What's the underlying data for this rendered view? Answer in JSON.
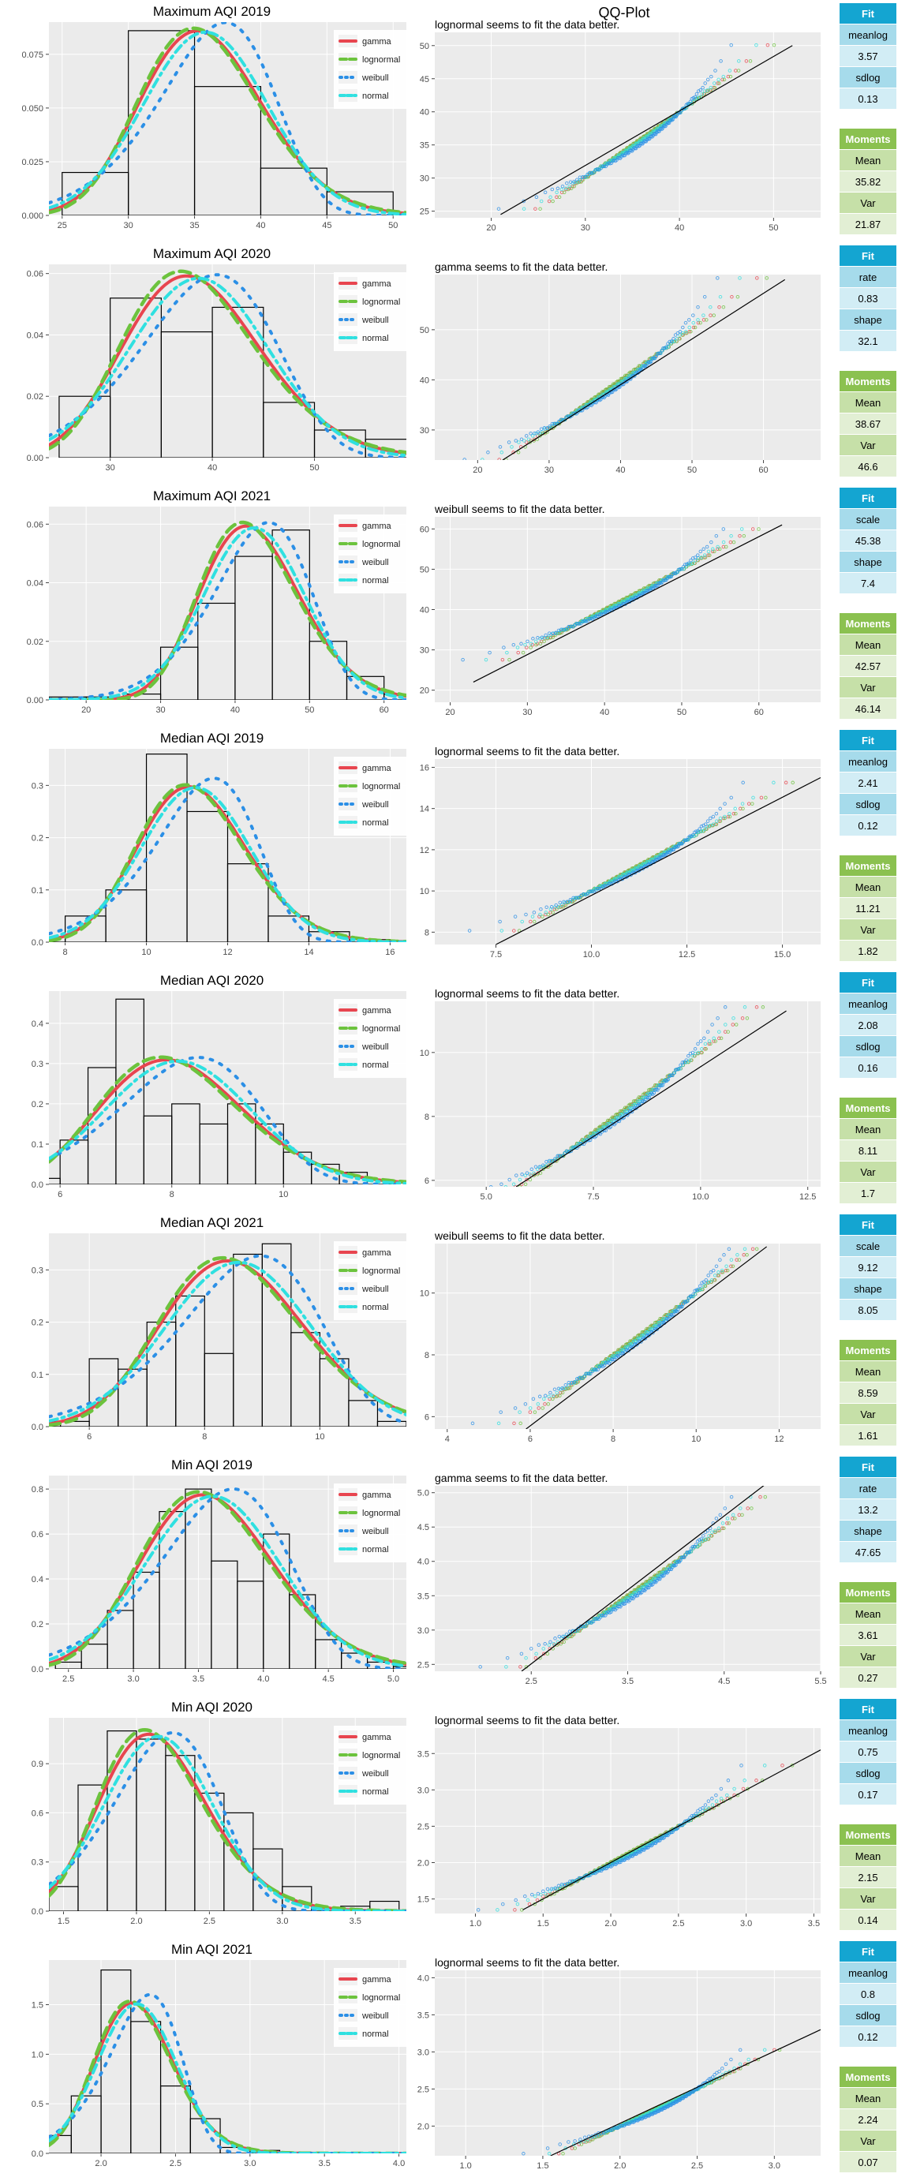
{
  "qq_title": "QQ-Plot",
  "legend_labels": [
    "gamma",
    "lognormal",
    "weibull",
    "normal"
  ],
  "colors": {
    "gamma": "#e8454f",
    "lognormal": "#6cc33d",
    "weibull": "#2b8fe6",
    "normal": "#2fe0e0",
    "panel_bg": "#ebebeb",
    "grid": "#ffffff",
    "fit_header": "#14a5d1",
    "fit_cell_dark": "#a6dbeb",
    "fit_cell_light": "#d2edf5",
    "mom_header": "#8bc150",
    "mom_cell_dark": "#c6e0a8",
    "mom_cell_light": "#e2efd4"
  },
  "chart_data": [
    {
      "type": "bar",
      "title": "Maximum AQI 2019",
      "hist_breaks": [
        25,
        30,
        35,
        40,
        45,
        50
      ],
      "hist_density": [
        0.02,
        0.086,
        0.06,
        0.022,
        0.011
      ],
      "xlim": [
        24,
        51
      ],
      "ylim": [
        0,
        0.09
      ],
      "xticks": [
        25,
        30,
        35,
        40,
        45,
        50
      ],
      "yticks": [
        0,
        0.025,
        0.05,
        0.075
      ],
      "ytick_labels": [
        "0.000",
        "0.025",
        "0.050",
        "0.075"
      ],
      "qq": {
        "subtitle": "lognormal seems to fit the data better.",
        "xlim": [
          14,
          55
        ],
        "ylim": [
          24,
          52
        ],
        "xticks": [
          20,
          30,
          40,
          50
        ],
        "yticks": [
          25,
          30,
          35,
          40,
          45,
          50
        ],
        "line": [
          [
            21,
            24.5
          ],
          [
            52,
            50
          ]
        ]
      },
      "fit": {
        "params": [
          {
            "name": "meanlog",
            "value": "3.57"
          },
          {
            "name": "sdlog",
            "value": "0.13"
          }
        ]
      },
      "moments": {
        "mean": "35.82",
        "var": "21.87"
      }
    },
    {
      "type": "bar",
      "title": "Maximum AQI 2020",
      "hist_breaks": [
        25,
        30,
        35,
        40,
        45,
        50,
        55,
        60
      ],
      "hist_density": [
        0.02,
        0.052,
        0.041,
        0.049,
        0.018,
        0.009,
        0.006
      ],
      "xlim": [
        24,
        59
      ],
      "ylim": [
        0,
        0.063
      ],
      "xticks": [
        30,
        40,
        50
      ],
      "yticks": [
        0,
        0.02,
        0.04,
        0.06
      ],
      "ytick_labels": [
        "0.00",
        "0.02",
        "0.04",
        "0.06"
      ],
      "qq": {
        "subtitle": "gamma seems to fit the data better.",
        "xlim": [
          14,
          68
        ],
        "ylim": [
          24,
          61
        ],
        "xticks": [
          20,
          30,
          40,
          50,
          60
        ],
        "yticks": [
          30,
          40,
          50
        ],
        "line": [
          [
            23.5,
            24
          ],
          [
            63,
            60
          ]
        ]
      },
      "fit": {
        "params": [
          {
            "name": "rate",
            "value": "0.83"
          },
          {
            "name": "shape",
            "value": "32.1"
          }
        ]
      },
      "moments": {
        "mean": "38.67",
        "var": "46.6"
      }
    },
    {
      "type": "bar",
      "title": "Maximum AQI 2021",
      "hist_breaks": [
        15,
        20,
        25,
        30,
        35,
        40,
        45,
        50,
        55,
        60,
        65
      ],
      "hist_density": [
        0.001,
        0.001,
        0.002,
        0.018,
        0.033,
        0.049,
        0.058,
        0.02,
        0.008,
        0.002
      ],
      "xlim": [
        15,
        63
      ],
      "ylim": [
        0,
        0.066
      ],
      "xticks": [
        20,
        30,
        40,
        50,
        60
      ],
      "yticks": [
        0,
        0.02,
        0.04,
        0.06
      ],
      "ytick_labels": [
        "0.00",
        "0.02",
        "0.04",
        "0.06"
      ],
      "qq": {
        "subtitle": "weibull seems to fit the data better.",
        "xlim": [
          18,
          68
        ],
        "ylim": [
          17,
          63
        ],
        "xticks": [
          20,
          30,
          40,
          50,
          60
        ],
        "yticks": [
          20,
          30,
          40,
          50,
          60
        ],
        "line": [
          [
            23,
            22
          ],
          [
            63,
            61
          ]
        ]
      },
      "fit": {
        "params": [
          {
            "name": "scale",
            "value": "45.38"
          },
          {
            "name": "shape",
            "value": "7.4"
          }
        ]
      },
      "moments": {
        "mean": "42.57",
        "var": "46.14"
      }
    },
    {
      "type": "bar",
      "title": "Median AQI 2019",
      "hist_breaks": [
        7,
        8,
        9,
        10,
        11,
        12,
        13,
        14,
        15,
        16,
        17
      ],
      "hist_density": [
        0.01,
        0.05,
        0.1,
        0.36,
        0.25,
        0.15,
        0.05,
        0.02,
        0.005,
        0.003
      ],
      "xlim": [
        7.6,
        16.4
      ],
      "ylim": [
        0,
        0.37
      ],
      "xticks": [
        8,
        10,
        12,
        14,
        16
      ],
      "yticks": [
        0,
        0.1,
        0.2,
        0.3
      ],
      "ytick_labels": [
        "0.0",
        "0.1",
        "0.2",
        "0.3"
      ],
      "qq": {
        "subtitle": "lognormal seems to fit the data better.",
        "xlim": [
          5.9,
          16
        ],
        "ylim": [
          7.4,
          16.4
        ],
        "xticks": [
          7.5,
          10,
          12.5,
          15
        ],
        "xtick_labels": [
          "7.5",
          "10.0",
          "12.5",
          "15.0"
        ],
        "yticks": [
          8,
          10,
          12,
          14,
          16
        ],
        "line": [
          [
            7.5,
            7.4
          ],
          [
            16,
            15.5
          ]
        ]
      },
      "fit": {
        "params": [
          {
            "name": "meanlog",
            "value": "2.41"
          },
          {
            "name": "sdlog",
            "value": "0.12"
          }
        ]
      },
      "moments": {
        "mean": "11.21",
        "var": "1.82"
      }
    },
    {
      "type": "bar",
      "title": "Median AQI 2020",
      "hist_breaks": [
        5,
        6,
        6.5,
        7,
        7.5,
        8,
        8.5,
        9,
        9.5,
        10,
        10.5,
        11,
        11.5,
        12
      ],
      "hist_density": [
        0.015,
        0.11,
        0.29,
        0.46,
        0.17,
        0.2,
        0.15,
        0.2,
        0.15,
        0.08,
        0.05,
        0.03,
        0.01
      ],
      "xlim": [
        5.8,
        12.2
      ],
      "ylim": [
        0,
        0.48
      ],
      "xticks": [
        6,
        8,
        10
      ],
      "yticks": [
        0,
        0.1,
        0.2,
        0.3,
        0.4
      ],
      "ytick_labels": [
        "0.0",
        "0.1",
        "0.2",
        "0.3",
        "0.4"
      ],
      "qq": {
        "subtitle": "lognormal seems to fit the data better.",
        "xlim": [
          3.8,
          12.8
        ],
        "ylim": [
          5.8,
          11.6
        ],
        "xticks": [
          5,
          7.5,
          10,
          12.5
        ],
        "xtick_labels": [
          "5.0",
          "7.5",
          "10.0",
          "12.5"
        ],
        "yticks": [
          6,
          8,
          10
        ],
        "line": [
          [
            5.7,
            5.8
          ],
          [
            12,
            11.3
          ]
        ]
      },
      "fit": {
        "params": [
          {
            "name": "meanlog",
            "value": "2.08"
          },
          {
            "name": "sdlog",
            "value": "0.16"
          }
        ]
      },
      "moments": {
        "mean": "8.11",
        "var": "1.7"
      }
    },
    {
      "type": "bar",
      "title": "Median AQI 2021",
      "hist_breaks": [
        5,
        5.5,
        6,
        6.5,
        7,
        7.5,
        8,
        8.5,
        9,
        9.5,
        10,
        10.5,
        11,
        11.5
      ],
      "hist_density": [
        0.01,
        0.01,
        0.13,
        0.11,
        0.2,
        0.25,
        0.14,
        0.33,
        0.35,
        0.18,
        0.13,
        0.05,
        0.01
      ],
      "xlim": [
        5.3,
        11.5
      ],
      "ylim": [
        0,
        0.37
      ],
      "xticks": [
        6,
        8,
        10
      ],
      "yticks": [
        0,
        0.1,
        0.2,
        0.3
      ],
      "ytick_labels": [
        "0.0",
        "0.1",
        "0.2",
        "0.3"
      ],
      "qq": {
        "subtitle": "weibull seems to fit the data better.",
        "xlim": [
          3.7,
          13
        ],
        "ylim": [
          5.6,
          11.6
        ],
        "xticks": [
          4,
          6,
          8,
          10,
          12
        ],
        "yticks": [
          6,
          8,
          10
        ],
        "line": [
          [
            5.9,
            5.6
          ],
          [
            11.7,
            11.5
          ]
        ]
      },
      "fit": {
        "params": [
          {
            "name": "scale",
            "value": "9.12"
          },
          {
            "name": "shape",
            "value": "8.05"
          }
        ]
      },
      "moments": {
        "mean": "8.59",
        "var": "1.61"
      }
    },
    {
      "type": "bar",
      "title": "Min AQI 2019",
      "hist_breaks": [
        2.4,
        2.6,
        2.8,
        3,
        3.2,
        3.4,
        3.6,
        3.8,
        4,
        4.2,
        4.4,
        4.6,
        4.8,
        5,
        5.2
      ],
      "hist_density": [
        0.03,
        0.11,
        0.26,
        0.43,
        0.7,
        0.8,
        0.48,
        0.39,
        0.6,
        0.33,
        0.13,
        0.07,
        0.03,
        0.01
      ],
      "xlim": [
        2.35,
        5.1
      ],
      "ylim": [
        0,
        0.86
      ],
      "xticks": [
        2.5,
        3,
        3.5,
        4,
        4.5,
        5
      ],
      "xtick_labels": [
        "2.5",
        "3.0",
        "3.5",
        "4.0",
        "4.5",
        "5.0"
      ],
      "yticks": [
        0,
        0.2,
        0.4,
        0.6,
        0.8
      ],
      "ytick_labels": [
        "0.0",
        "0.2",
        "0.4",
        "0.6",
        "0.8"
      ],
      "qq": {
        "subtitle": "gamma seems to fit the data better.",
        "xlim": [
          1.5,
          5.5
        ],
        "ylim": [
          2.4,
          5.1
        ],
        "xticks": [
          2.5,
          3.5,
          4.5,
          5.5
        ],
        "xtick_labels": [
          "2.5",
          "3.5",
          "4.5",
          "5.5"
        ],
        "yticks": [
          2.5,
          3,
          3.5,
          4,
          4.5,
          5
        ],
        "ytick_labels": [
          "2.5",
          "3.0",
          "3.5",
          "4.0",
          "4.5",
          "5.0"
        ],
        "line": [
          [
            2.4,
            2.4
          ],
          [
            5,
            5.2
          ]
        ]
      },
      "fit": {
        "params": [
          {
            "name": "rate",
            "value": "13.2"
          },
          {
            "name": "shape",
            "value": "47.65"
          }
        ]
      },
      "moments": {
        "mean": "3.61",
        "var": "0.27"
      }
    },
    {
      "type": "bar",
      "title": "Min AQI 2020",
      "hist_breaks": [
        1.4,
        1.6,
        1.8,
        2,
        2.2,
        2.4,
        2.6,
        2.8,
        3,
        3.2,
        3.4,
        3.6,
        3.8
      ],
      "hist_density": [
        0.15,
        0.77,
        1.1,
        1.05,
        0.95,
        0.72,
        0.6,
        0.38,
        0.15,
        0.02,
        0.03,
        0.06
      ],
      "xlim": [
        1.4,
        3.85
      ],
      "ylim": [
        0,
        1.18
      ],
      "xticks": [
        1.5,
        2,
        2.5,
        3,
        3.5
      ],
      "xtick_labels": [
        "1.5",
        "2.0",
        "2.5",
        "3.0",
        "3.5"
      ],
      "yticks": [
        0,
        0.3,
        0.6,
        0.9
      ],
      "ytick_labels": [
        "0.0",
        "0.3",
        "0.6",
        "0.9"
      ],
      "qq": {
        "subtitle": "lognormal seems to fit the data better.",
        "xlim": [
          0.7,
          3.55
        ],
        "ylim": [
          1.3,
          3.85
        ],
        "xticks": [
          1,
          1.5,
          2,
          2.5,
          3,
          3.5
        ],
        "xtick_labels": [
          "1.0",
          "1.5",
          "2.0",
          "2.5",
          "3.0",
          "3.5"
        ],
        "yticks": [
          1.5,
          2,
          2.5,
          3,
          3.5
        ],
        "ytick_labels": [
          "1.5",
          "2.0",
          "2.5",
          "3.0",
          "3.5"
        ],
        "line": [
          [
            1.35,
            1.35
          ],
          [
            3.55,
            3.55
          ]
        ]
      },
      "fit": {
        "params": [
          {
            "name": "meanlog",
            "value": "0.75"
          },
          {
            "name": "sdlog",
            "value": "0.17"
          }
        ]
      },
      "moments": {
        "mean": "2.15",
        "var": "0.14"
      }
    },
    {
      "type": "bar",
      "title": "Min AQI 2021",
      "hist_breaks": [
        1.6,
        1.8,
        2,
        2.2,
        2.4,
        2.6,
        2.8,
        3,
        3.2,
        3.4,
        3.6,
        3.8,
        4
      ],
      "hist_density": [
        0.18,
        0.58,
        1.85,
        1.33,
        0.68,
        0.35,
        0.06,
        0.03,
        0.01,
        0.01,
        0.01,
        0.01
      ],
      "xlim": [
        1.65,
        4.05
      ],
      "ylim": [
        0,
        1.95
      ],
      "xticks": [
        2,
        2.5,
        3,
        3.5,
        4
      ],
      "xtick_labels": [
        "2.0",
        "2.5",
        "3.0",
        "3.5",
        "4.0"
      ],
      "yticks": [
        0,
        0.5,
        1,
        1.5
      ],
      "ytick_labels": [
        "0.0",
        "0.5",
        "1.0",
        "1.5"
      ],
      "qq": {
        "subtitle": "lognormal seems to fit the data better.",
        "xlim": [
          0.8,
          3.3
        ],
        "ylim": [
          1.6,
          4.1
        ],
        "xticks": [
          1,
          1.5,
          2,
          2.5,
          3
        ],
        "xtick_labels": [
          "1.0",
          "1.5",
          "2.0",
          "2.5",
          "3.0"
        ],
        "yticks": [
          2,
          2.5,
          3,
          3.5,
          4
        ],
        "ytick_labels": [
          "2.0",
          "2.5",
          "3.0",
          "3.5",
          "4.0"
        ],
        "line": [
          [
            1.55,
            1.6
          ],
          [
            3.3,
            3.3
          ]
        ]
      },
      "fit": {
        "params": [
          {
            "name": "meanlog",
            "value": "0.8"
          },
          {
            "name": "sdlog",
            "value": "0.12"
          }
        ]
      },
      "moments": {
        "mean": "2.24",
        "var": "0.07"
      }
    }
  ],
  "fit_label": "Fit",
  "moments_label": "Moments",
  "mean_label": "Mean",
  "var_label": "Var"
}
